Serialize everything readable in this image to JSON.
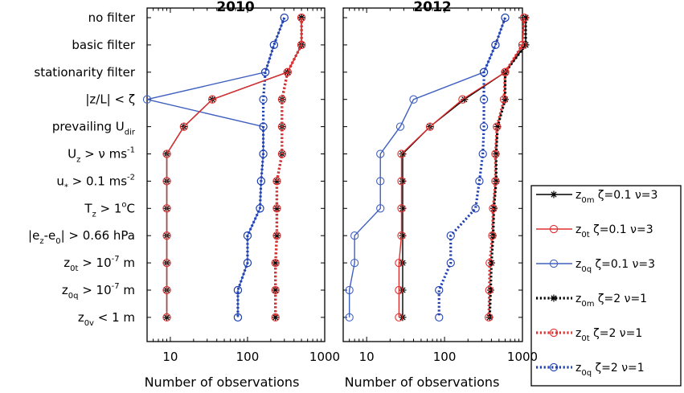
{
  "chart_data": {
    "type": "line",
    "xscale": "log",
    "xlim": [
      5,
      1000
    ],
    "xticks": [
      "10",
      "100",
      "1000"
    ],
    "xlabel": "Number of observations",
    "categories": [
      [
        "no filter"
      ],
      [
        "basic filter"
      ],
      [
        "stationarity filter"
      ],
      [
        "|z/L| < ζ"
      ],
      [
        "prevailing U",
        "dir"
      ],
      [
        "U",
        "z",
        " > ν ms",
        "-1"
      ],
      [
        "u",
        "*",
        " > 0.1 ms",
        "-2"
      ],
      [
        "T",
        "z",
        " > 1",
        "o",
        "C"
      ],
      [
        "|e",
        "z",
        "-e",
        "0",
        "| > 0.66 hPa"
      ],
      [
        "z",
        "0t",
        " > 10",
        "-7",
        " m"
      ],
      [
        "z",
        "0q",
        " > 10",
        "-7",
        " m"
      ],
      [
        "z",
        "0v",
        " < 1 m"
      ]
    ],
    "legend": [
      [
        "z",
        "0m",
        " ζ=0.1 ν=3"
      ],
      [
        "z",
        "0t",
        " ζ=0.1 ν=3"
      ],
      [
        "z",
        "0q",
        " ζ=0.1 ν=3"
      ],
      [
        "z",
        "0m",
        " ζ=2 ν=1"
      ],
      [
        "z",
        "0t",
        " ζ=2 ν=1"
      ],
      [
        "z",
        "0q",
        " ζ=2 ν=1"
      ]
    ],
    "legend_placement": "right",
    "series_colors": [
      "#000000",
      "#e03030",
      "#4060c0",
      "#000000",
      "#e03030",
      "#2040b0"
    ],
    "series_styles": [
      "solid",
      "solid",
      "solid",
      "dotted",
      "dotted",
      "dotted"
    ],
    "series_markers": [
      "star",
      "circle",
      "circle",
      "star",
      "circle",
      "circle"
    ],
    "panels": [
      {
        "title": "2010",
        "series": [
          {
            "values": [
              500,
              500,
              330,
              35,
              15,
              9,
              9,
              9,
              9,
              9,
              9,
              9
            ]
          },
          {
            "values": [
              500,
              500,
              330,
              35,
              15,
              9,
              9,
              9,
              9,
              9,
              9,
              9
            ]
          },
          {
            "values": [
              300,
              220,
              170,
              5,
              160,
              160,
              150,
              145,
              100,
              100,
              75,
              75
            ]
          },
          {
            "values": [
              500,
              500,
              330,
              280,
              280,
              280,
              240,
              240,
              240,
              230,
              230,
              230
            ]
          },
          {
            "values": [
              500,
              500,
              330,
              280,
              280,
              280,
              240,
              240,
              240,
              230,
              230,
              230
            ]
          },
          {
            "values": [
              300,
              220,
              170,
              160,
              160,
              160,
              150,
              145,
              100,
              100,
              75,
              75
            ]
          }
        ]
      },
      {
        "title": "2012",
        "series": [
          {
            "values": [
              1100,
              1100,
              600,
              180,
              65,
              29,
              29,
              29,
              29,
              29,
              29,
              29
            ]
          },
          {
            "values": [
              1050,
              1000,
              600,
              170,
              65,
              28,
              28,
              28,
              28,
              26,
              26,
              26
            ]
          },
          {
            "values": [
              600,
              450,
              320,
              40,
              27,
              15,
              15,
              15,
              7,
              7,
              6,
              6
            ]
          },
          {
            "values": [
              1100,
              1100,
              600,
              600,
              480,
              460,
              460,
              430,
              420,
              400,
              390,
              380
            ]
          },
          {
            "values": [
              1050,
              1000,
              600,
              580,
              470,
              450,
              450,
              420,
              410,
              380,
              375,
              370
            ]
          },
          {
            "values": [
              600,
              450,
              320,
              320,
              320,
              310,
              280,
              250,
              120,
              120,
              85,
              85
            ]
          }
        ]
      }
    ]
  }
}
